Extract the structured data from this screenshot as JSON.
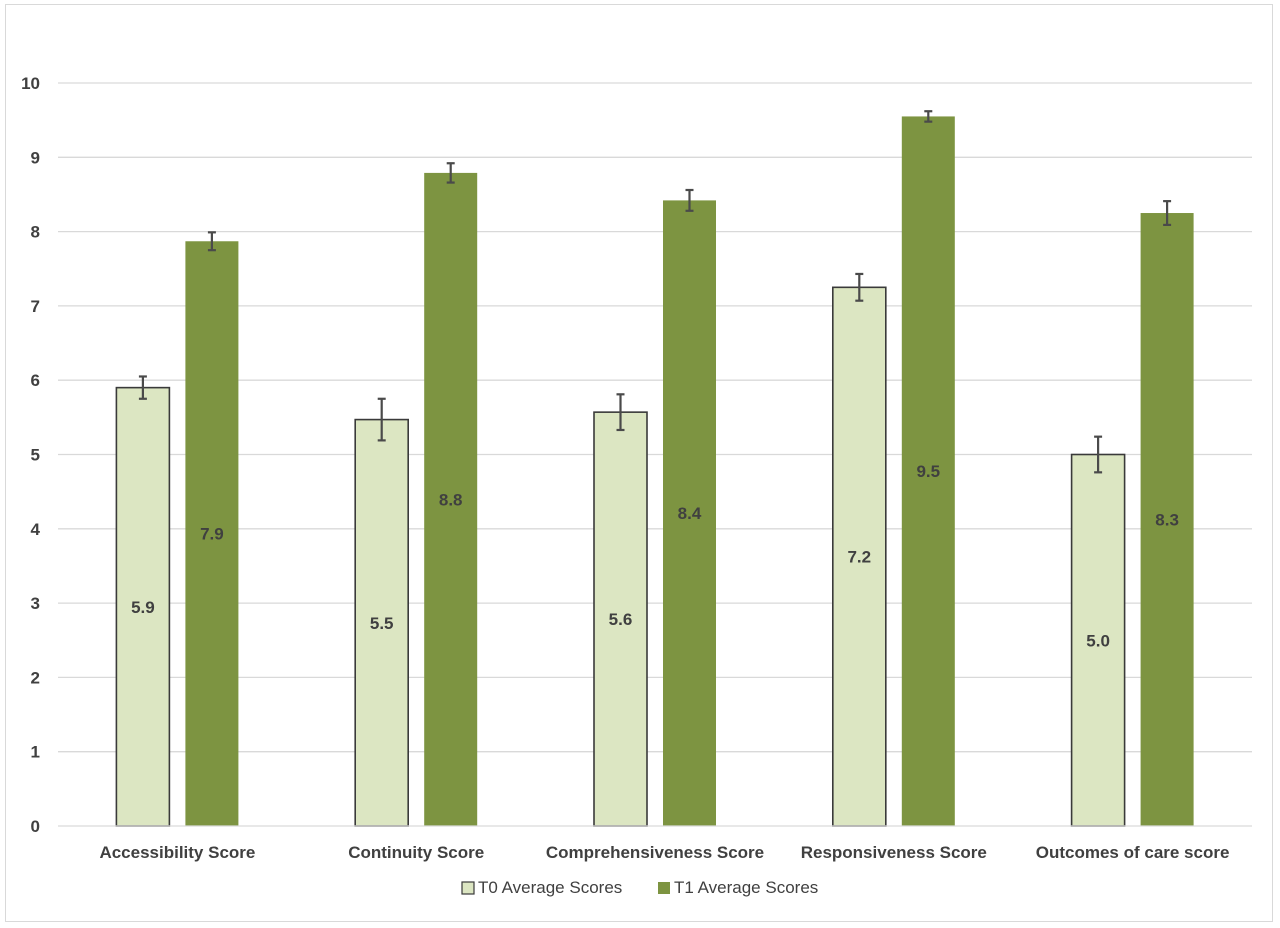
{
  "chart_data": {
    "type": "bar",
    "title": "",
    "xlabel": "",
    "ylabel": "",
    "ylim": [
      0,
      10
    ],
    "yticks": [
      "0",
      "1",
      "2",
      "3",
      "4",
      "5",
      "6",
      "7",
      "8",
      "9",
      "10"
    ],
    "grid": true,
    "legend_position": "bottom",
    "categories": [
      "Accessibility Score",
      "Continuity Score",
      "Comprehensiveness Score",
      "Responsiveness Score",
      "Outcomes of care score"
    ],
    "series": [
      {
        "name": "T0 Average Scores",
        "color": "#dce6c2",
        "border": "#3a3a3a",
        "values": [
          5.9,
          5.47,
          5.57,
          7.25,
          5.0
        ],
        "labels": [
          "5.9",
          "5.5",
          "5.6",
          "7.2",
          "5.0"
        ],
        "error": [
          0.15,
          0.28,
          0.24,
          0.18,
          0.24
        ]
      },
      {
        "name": "T1 Average Scores",
        "color": "#7d9441",
        "border": "#7d9441",
        "values": [
          7.87,
          8.79,
          8.42,
          9.55,
          8.25
        ],
        "labels": [
          "7.9",
          "8.8",
          "8.4",
          "9.5",
          "8.3"
        ],
        "error": [
          0.12,
          0.13,
          0.14,
          0.07,
          0.16
        ]
      }
    ]
  }
}
